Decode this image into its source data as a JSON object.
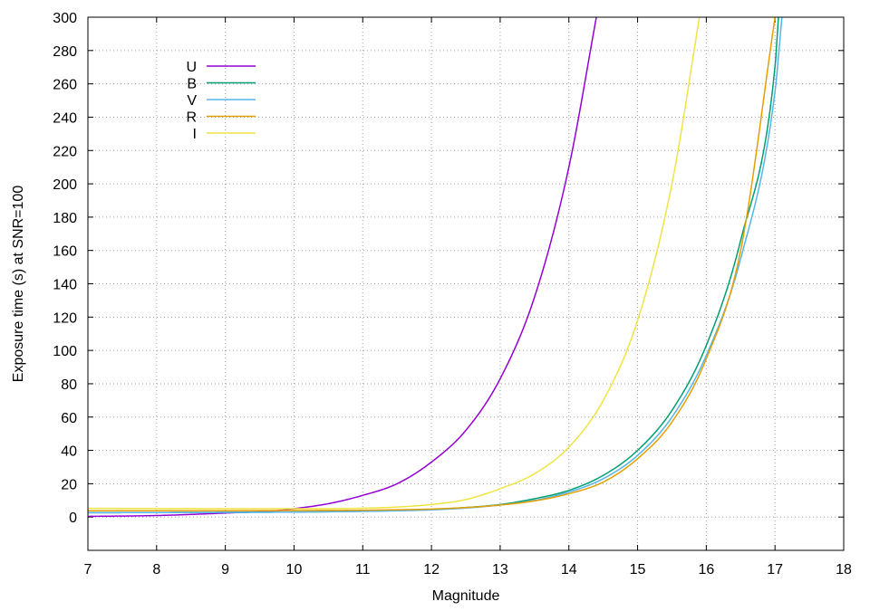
{
  "chart_data": {
    "type": "line",
    "title": "",
    "xlabel": "Magnitude",
    "ylabel": "Exposure time (s) at SNR=100",
    "xlim": [
      7,
      18
    ],
    "ylim": [
      -20,
      300
    ],
    "xticks": [
      7,
      8,
      9,
      10,
      11,
      12,
      13,
      14,
      15,
      16,
      17,
      18
    ],
    "yticks": [
      0,
      20,
      40,
      60,
      80,
      100,
      120,
      140,
      160,
      180,
      200,
      220,
      240,
      260,
      280,
      300
    ],
    "grid": true,
    "legend_position": "top-left",
    "series": [
      {
        "name": "U",
        "color": "#9400d3",
        "x": [
          7,
          8,
          9,
          9.8,
          10,
          10.5,
          11,
          11.5,
          12,
          12.5,
          13,
          13.5,
          14,
          14.4
        ],
        "y": [
          0.4,
          0.9,
          2.4,
          4,
          5,
          8,
          13,
          20,
          33,
          52,
          83,
          132,
          210,
          300
        ]
      },
      {
        "name": "B",
        "color": "#009e73",
        "x": [
          7,
          8,
          9,
          10,
          11,
          12,
          12.5,
          13,
          13.5,
          14,
          14.5,
          15,
          15.5,
          16,
          16.5,
          17,
          17.05
        ],
        "y": [
          2.6,
          2.7,
          2.8,
          3,
          3.5,
          4.5,
          5.7,
          7.5,
          11,
          16,
          25,
          40,
          64,
          103,
          166,
          270,
          300
        ]
      },
      {
        "name": "V",
        "color": "#56b4e9",
        "x": [
          7,
          8,
          9,
          10,
          11,
          12,
          12.5,
          13,
          13.5,
          14,
          14.5,
          15,
          15.5,
          16,
          16.5,
          17,
          17.1
        ],
        "y": [
          2.6,
          2.7,
          2.8,
          3,
          3.4,
          4.3,
          5.4,
          7.2,
          10,
          15,
          23,
          37,
          60,
          97,
          155,
          255,
          300
        ]
      },
      {
        "name": "R",
        "color": "#e69f00",
        "x": [
          7,
          8,
          9,
          10,
          11,
          12,
          12.5,
          13,
          13.5,
          14,
          14.5,
          15,
          15.5,
          16,
          16.5,
          17
        ],
        "y": [
          3.8,
          3.8,
          3.8,
          3.9,
          4.1,
          4.8,
          5.7,
          7.2,
          9.7,
          14,
          21,
          35,
          57,
          95,
          160,
          300
        ]
      },
      {
        "name": "I",
        "color": "#f0e442",
        "x": [
          7,
          8,
          9,
          10,
          11,
          11.5,
          12,
          12.5,
          13,
          13.5,
          14,
          14.5,
          15,
          15.5,
          15.9
        ],
        "y": [
          5.2,
          5.1,
          5,
          5,
          5.3,
          6,
          7.5,
          10.5,
          17,
          26,
          42,
          70,
          118,
          200,
          300
        ]
      }
    ]
  }
}
